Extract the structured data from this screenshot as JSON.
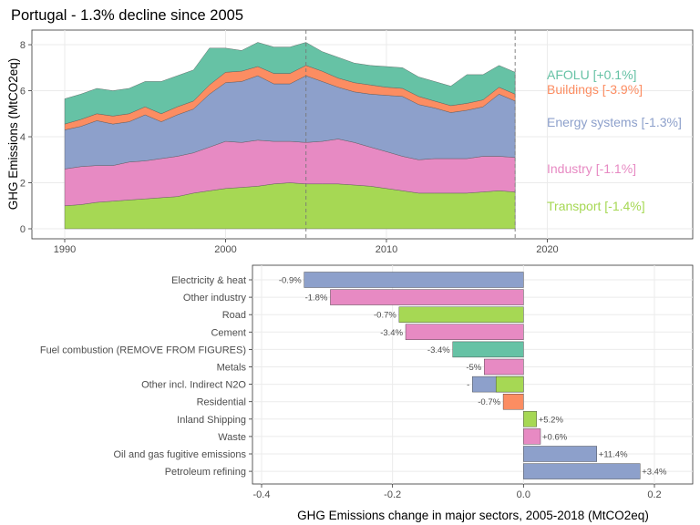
{
  "title": "Portugal - 1.3% decline since 2005",
  "chart_data": [
    {
      "type": "area",
      "stacked": true,
      "title": "Portugal - 1.3% decline since 2005",
      "ylabel": "GHG Emissions (MtCO2eq)",
      "xlabel": "",
      "xlim": [
        1990,
        2027
      ],
      "ylim": [
        0,
        8.2
      ],
      "xticks": [
        1990,
        2000,
        2010,
        2020
      ],
      "yticks": [
        0,
        2,
        4,
        6,
        8
      ],
      "reference_lines_x": [
        2005,
        2018
      ],
      "grid": true,
      "x": [
        1990,
        1991,
        1992,
        1993,
        1994,
        1995,
        1996,
        1997,
        1998,
        1999,
        2000,
        2001,
        2002,
        2003,
        2004,
        2005,
        2006,
        2007,
        2008,
        2009,
        2010,
        2011,
        2012,
        2013,
        2014,
        2015,
        2016,
        2017,
        2018
      ],
      "series": [
        {
          "name": "Transport",
          "color": "#a6d854",
          "label": "Transport [-1.4%]",
          "values": [
            1.0,
            1.05,
            1.15,
            1.2,
            1.25,
            1.3,
            1.35,
            1.4,
            1.55,
            1.65,
            1.75,
            1.8,
            1.85,
            1.95,
            2.0,
            1.95,
            1.95,
            1.95,
            1.9,
            1.85,
            1.75,
            1.65,
            1.55,
            1.55,
            1.55,
            1.55,
            1.6,
            1.65,
            1.6
          ]
        },
        {
          "name": "Industry",
          "color": "#e78ac3",
          "label": "Industry [-1.1%]",
          "values": [
            1.6,
            1.65,
            1.6,
            1.55,
            1.65,
            1.65,
            1.7,
            1.75,
            1.75,
            1.9,
            2.05,
            1.95,
            2.0,
            1.85,
            1.8,
            1.8,
            1.85,
            1.95,
            1.85,
            1.7,
            1.6,
            1.5,
            1.45,
            1.5,
            1.5,
            1.5,
            1.55,
            1.5,
            1.5
          ]
        },
        {
          "name": "Energy systems",
          "color": "#8da0cb",
          "label": "Energy systems [-1.3%]",
          "values": [
            1.7,
            1.75,
            1.95,
            1.8,
            1.75,
            2.0,
            1.6,
            1.8,
            1.9,
            2.3,
            2.55,
            2.65,
            2.8,
            2.5,
            2.5,
            2.9,
            2.6,
            2.25,
            2.2,
            2.3,
            2.45,
            2.6,
            2.4,
            2.2,
            2.0,
            2.1,
            2.15,
            2.7,
            2.45
          ]
        },
        {
          "name": "Buildings",
          "color": "#fc8d62",
          "label": "Buildings [-3.9%]",
          "values": [
            0.25,
            0.3,
            0.3,
            0.35,
            0.35,
            0.35,
            0.35,
            0.35,
            0.35,
            0.4,
            0.45,
            0.45,
            0.4,
            0.45,
            0.45,
            0.45,
            0.45,
            0.4,
            0.4,
            0.4,
            0.35,
            0.35,
            0.35,
            0.3,
            0.3,
            0.3,
            0.3,
            0.3,
            0.3
          ]
        },
        {
          "name": "AFOLU",
          "color": "#66c2a5",
          "label": "AFOLU [+0.1%]",
          "values": [
            1.1,
            1.1,
            1.1,
            1.1,
            1.1,
            1.1,
            1.4,
            1.35,
            1.35,
            1.6,
            1.05,
            0.9,
            1.05,
            1.15,
            1.15,
            1.0,
            0.85,
            0.9,
            0.85,
            0.85,
            0.9,
            0.9,
            0.85,
            0.85,
            0.85,
            1.25,
            1.1,
            0.95,
            0.95
          ]
        }
      ]
    },
    {
      "type": "bar",
      "orientation": "horizontal",
      "xlabel": "GHG Emissions change in major sectors, 2005-2018 (MtCO2eq)",
      "ylabel": "",
      "xlim": [
        -0.4,
        0.25
      ],
      "xticks": [
        -0.4,
        -0.2,
        0.0,
        0.2
      ],
      "xtick_labels": [
        "-0.4",
        "-0.2",
        "0.0",
        "0.2"
      ],
      "grid": true,
      "categories": [
        "Electricity & heat",
        "Other industry",
        "Road",
        "Cement",
        "Fuel combustion (REMOVE FROM FIGURES)",
        "Metals",
        "Other incl. Indirect N2O",
        "Residential",
        "Inland Shipping",
        "Waste",
        "Oil and gas fugitive emissions",
        "Petroleum refining"
      ],
      "values": [
        -0.335,
        -0.295,
        -0.19,
        -0.18,
        -0.108,
        -0.06,
        -0.078,
        -0.031,
        0.02,
        0.026,
        0.112,
        0.178
      ],
      "labels": [
        "-0.9%",
        "-1.8%",
        "-0.7%",
        "-3.4%",
        "-3.4%",
        "-5%",
        "-",
        "-0.7%",
        "+5.2%",
        "+0.6%",
        "+11.4%",
        "+3.4%"
      ],
      "colors": [
        "#8da0cb",
        "#e78ac3",
        "#a6d854",
        "#e78ac3",
        "#66c2a5",
        "#e78ac3",
        "#8da0cb",
        "#fc8d62",
        "#a6d854",
        "#e78ac3",
        "#8da0cb",
        "#8da0cb"
      ],
      "secondary_values": [
        null,
        null,
        null,
        null,
        null,
        null,
        -0.042,
        null,
        null,
        null,
        null,
        null
      ],
      "secondary_colors": [
        null,
        null,
        null,
        null,
        null,
        null,
        "#a6d854",
        null,
        null,
        null,
        null,
        null
      ]
    }
  ]
}
